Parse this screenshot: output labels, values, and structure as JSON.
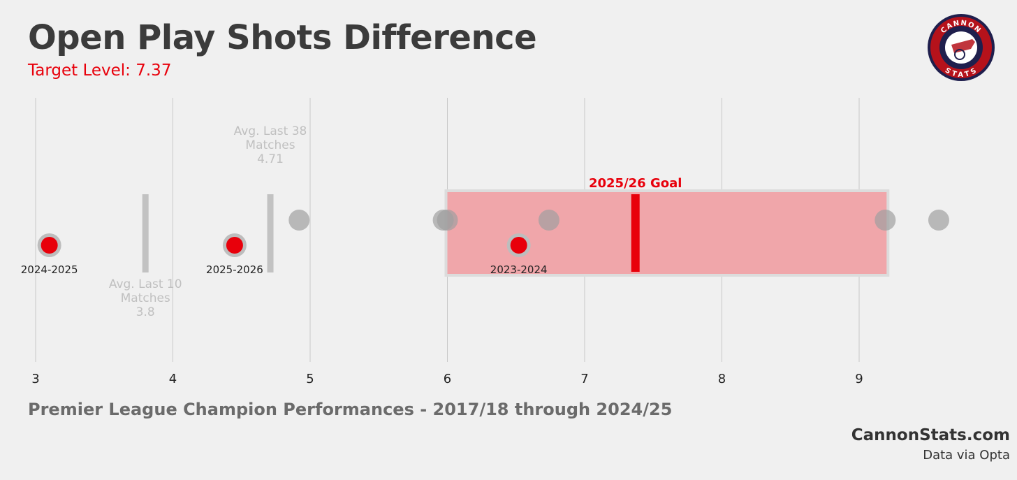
{
  "header": {
    "title": "Open Play Shots Difference",
    "subtitle": "Target Level: 7.37"
  },
  "footer": {
    "caption": "Premier League Champion Performances - 2017/18 through 2024/25",
    "brand": "CannonStats.com",
    "source": "Data via Opta"
  },
  "logo": {
    "top_text": "CANNON",
    "bottom_text": "STATS",
    "icon": "cannon-icon"
  },
  "colors": {
    "highlight": "#e8000b",
    "goal_band": "#f0a6aa",
    "champion_dot": "#a0a0a0",
    "avg_line": "#c2c2c2",
    "grid": "#c8c8c8",
    "avg_text": "#c0c0c0"
  },
  "chart_data": {
    "type": "scatter",
    "xlim": [
      3,
      10.1
    ],
    "xticks": [
      3,
      4,
      5,
      6,
      7,
      8,
      9
    ],
    "grid": true,
    "goal": {
      "label": "2025/26 Goal",
      "value": 7.37,
      "range": [
        6.0,
        9.2
      ]
    },
    "champion_points": [
      4.92,
      5.97,
      6.0,
      6.74,
      9.19,
      9.58
    ],
    "highlight_points": [
      {
        "label": "2024-2025",
        "value": 3.1
      },
      {
        "label": "2025-2026",
        "value": 4.45
      },
      {
        "label": "2023-2024",
        "value": 6.52
      }
    ],
    "averages": [
      {
        "label_lines": [
          "Avg. Last 10",
          "Matches"
        ],
        "value": 3.8,
        "value_text": "3.8",
        "label_position": "below"
      },
      {
        "label_lines": [
          "Avg. Last 38",
          "Matches"
        ],
        "value": 4.71,
        "value_text": "4.71",
        "label_position": "above"
      }
    ]
  }
}
